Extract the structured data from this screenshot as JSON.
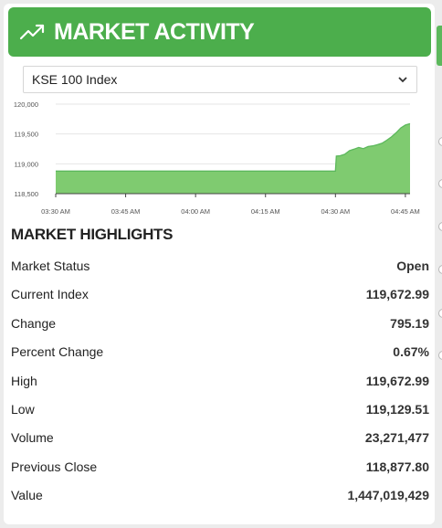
{
  "header": {
    "title": "MARKET ACTIVITY",
    "icon": "trending-up-icon"
  },
  "index_select": {
    "selected": "KSE 100 Index"
  },
  "chart_data": {
    "type": "area",
    "color": "#5cb85c",
    "fill": "#7fcb70",
    "ylim": [
      118500,
      120000
    ],
    "yticks": [
      "120,000",
      "119,500",
      "119,000",
      "118,500"
    ],
    "ytick_values": [
      120000,
      119500,
      119000,
      118500
    ],
    "xticks": [
      "03:30 AM",
      "03:45 AM",
      "04:00 AM",
      "04:15 AM",
      "04:30 AM",
      "04:45 AM"
    ],
    "xtick_values": [
      210,
      225,
      240,
      255,
      270,
      285
    ],
    "x_start": 210,
    "x_end": 286,
    "points": [
      [
        210,
        118878
      ],
      [
        225,
        118878
      ],
      [
        240,
        118878
      ],
      [
        255,
        118878
      ],
      [
        270,
        118878
      ],
      [
        270.2,
        119130
      ],
      [
        271,
        119135
      ],
      [
        272,
        119160
      ],
      [
        273,
        119220
      ],
      [
        274,
        119245
      ],
      [
        275,
        119275
      ],
      [
        276,
        119255
      ],
      [
        277,
        119290
      ],
      [
        278,
        119300
      ],
      [
        279,
        119320
      ],
      [
        280,
        119345
      ],
      [
        281,
        119395
      ],
      [
        282,
        119450
      ],
      [
        283,
        119520
      ],
      [
        284,
        119600
      ],
      [
        285,
        119650
      ],
      [
        286,
        119673
      ]
    ]
  },
  "highlights": {
    "title": "MARKET HIGHLIGHTS",
    "rows": [
      {
        "label": "Market Status",
        "value": "Open"
      },
      {
        "label": "Current Index",
        "value": "119,672.99"
      },
      {
        "label": "Change",
        "value": "795.19"
      },
      {
        "label": "Percent Change",
        "value": "0.67%"
      },
      {
        "label": "High",
        "value": "119,672.99"
      },
      {
        "label": "Low",
        "value": "119,129.51"
      },
      {
        "label": "Volume",
        "value": "23,271,477"
      },
      {
        "label": "Previous Close",
        "value": "118,877.80"
      },
      {
        "label": "Value",
        "value": "1,447,019,429"
      }
    ]
  }
}
